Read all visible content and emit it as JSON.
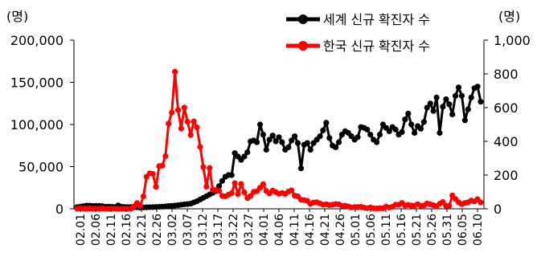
{
  "chart_data": {
    "type": "line",
    "left_unit": "(명)",
    "right_unit": "(명)",
    "left_axis": {
      "ylim": [
        0,
        200000
      ],
      "ticks": [
        "0",
        "50,000",
        "100,000",
        "150,000",
        "200,000"
      ]
    },
    "right_axis": {
      "ylim": [
        0,
        1000
      ],
      "ticks": [
        "0",
        "200",
        "400",
        "600",
        "800",
        "1,000"
      ]
    },
    "x_ticks": [
      "02.01",
      "02.06",
      "02.11",
      "02.16",
      "02.21",
      "02.26",
      "03.02",
      "03.07",
      "03.12",
      "03.17",
      "03.22",
      "03.27",
      "04.01",
      "04.06",
      "04.11",
      "04.16",
      "04.21",
      "04.26",
      "05.01",
      "05.06",
      "05.11",
      "05.16",
      "05.21",
      "05.26",
      "05.31",
      "06.05",
      "06.10"
    ],
    "legend": [
      "세계 신규 확진자 수",
      "한국 신규 확진자 수"
    ],
    "legend_position": "top-right",
    "grid": false,
    "colors": {
      "world": "#000000",
      "korea": "#ff0000"
    },
    "series": [
      {
        "name": "세계 신규 확진자 수",
        "axis": "left",
        "color": "#000000",
        "values": [
          2100,
          2600,
          3100,
          3800,
          3700,
          3300,
          3500,
          3500,
          3100,
          2600,
          2500,
          2400,
          2100,
          4000,
          2500,
          2200,
          2100,
          2000,
          1900,
          1800,
          1500,
          1600,
          1800,
          1900,
          2000,
          2200,
          2400,
          2600,
          2900,
          3200,
          3500,
          3800,
          4200,
          4800,
          5200,
          5600,
          6100,
          7500,
          9000,
          11000,
          13000,
          15000,
          17000,
          19000,
          21000,
          27000,
          33000,
          38000,
          40000,
          40000,
          66000,
          62000,
          58000,
          62000,
          67000,
          80000,
          81000,
          79000,
          100000,
          88000,
          70000,
          82000,
          87000,
          80000,
          85000,
          79000,
          70000,
          73000,
          81000,
          86000,
          78000,
          48000,
          76000,
          78000,
          70000,
          78000,
          82000,
          86000,
          93000,
          102000,
          84000,
          75000,
          73000,
          79000,
          88000,
          92000,
          90000,
          86000,
          82000,
          85000,
          97000,
          96000,
          94000,
          88000,
          82000,
          79000,
          88000,
          100000,
          96000,
          92000,
          97000,
          94000,
          88000,
          91000,
          106000,
          113000,
          100000,
          90000,
          98000,
          95000,
          103000,
          120000,
          125000,
          116000,
          132000,
          90000,
          121000,
          130000,
          124000,
          112000,
          134000,
          144000,
          134000,
          105000,
          118000,
          132000,
          143000,
          145000,
          127000
        ]
      },
      {
        "name": "한국 신규 확진자 수",
        "axis": "right",
        "color": "#ff0000",
        "values": [
          1,
          3,
          1,
          0,
          2,
          0,
          1,
          0,
          3,
          0,
          0,
          1,
          0,
          0,
          0,
          0,
          0,
          1,
          15,
          34,
          16,
          74,
          190,
          210,
          207,
          130,
          253,
          256,
          312,
          505,
          571,
          813,
          586,
          476,
          600,
          516,
          438,
          518,
          483,
          367,
          248,
          131,
          242,
          114,
          110,
          107,
          76,
          74,
          84,
          93,
          152,
          87,
          147,
          98,
          64,
          76,
          100,
          104,
          125,
          146,
          105,
          91,
          108,
          99,
          89,
          94,
          88,
          102,
          109,
          78,
          74,
          54,
          52,
          47,
          30,
          37,
          39,
          32,
          25,
          27,
          22,
          25,
          28,
          26,
          18,
          18,
          14,
          8,
          10,
          10,
          12,
          7,
          4,
          8,
          3,
          2,
          4,
          3,
          13,
          8,
          12,
          24,
          24,
          35,
          20,
          23,
          19,
          18,
          27,
          18,
          20,
          32,
          26,
          21,
          15,
          30,
          40,
          18,
          17,
          79,
          58,
          39,
          27,
          35,
          38,
          49,
          44,
          57,
          38
        ]
      }
    ]
  }
}
